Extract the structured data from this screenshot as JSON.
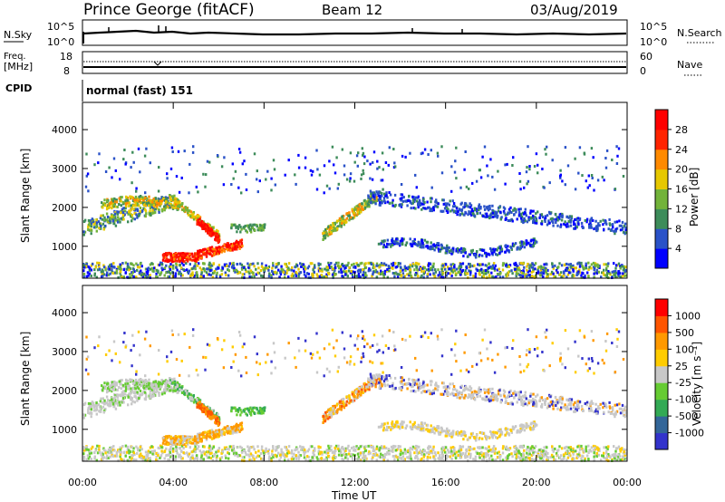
{
  "header": {
    "station": "Prince George (fitACF)",
    "beam": "Beam 12",
    "date": "03/Aug/2019"
  },
  "summary_panels": {
    "nsky_label": "N.Sky",
    "nsearch_label": "N.Search",
    "nsky_ticks": [
      "10^5",
      "10^0"
    ],
    "nsearch_ticks": [
      "10^5",
      "10^0"
    ],
    "freq_label_line1": "Freq.",
    "freq_label_line2": "[MHz]",
    "freq_ticks": [
      "18",
      "8"
    ],
    "nave_label": "Nave",
    "nave_ticks": [
      "60",
      "0"
    ],
    "cpid_label": "CPID",
    "cpid_value": "normal (fast) 151"
  },
  "colors": {
    "power_scale": [
      "#0000ff",
      "#2a52c8",
      "#3d8c5a",
      "#72b33a",
      "#e6c800",
      "#ff8a00",
      "#ff2400",
      "#ff0000"
    ],
    "velocity_scale": [
      "#3333cc",
      "#336699",
      "#33aa55",
      "#66cc33",
      "#c8c8c8",
      "#ffcc00",
      "#ff9900",
      "#ff5500",
      "#ff0000"
    ]
  },
  "chart_data": [
    {
      "type": "heatmap",
      "panel": "power",
      "ylabel": "Slant Range [km]",
      "xlabel": "Time UT",
      "x_ticks": [
        "00:00",
        "04:00",
        "08:00",
        "12:00",
        "16:00",
        "20:00",
        "00:00"
      ],
      "x_range_hours": [
        0,
        24
      ],
      "y_ticks": [
        1000,
        2000,
        3000,
        4000
      ],
      "ylim": [
        180,
        4700
      ],
      "colorbar_label": "Power [dB]",
      "colorbar_ticks": [
        4,
        8,
        12,
        16,
        20,
        24,
        28
      ],
      "colorbar_range": [
        0,
        30
      ],
      "features": [
        {
          "desc": "arc",
          "t_start": 0.0,
          "t_end": 7.0,
          "range_km": [
            1400,
            2200
          ]
        },
        {
          "desc": "strong echo",
          "t_start": 3.2,
          "t_end": 7.0,
          "range_km": [
            700,
            1500
          ],
          "power_db": 28
        },
        {
          "desc": "near-range ground scatter",
          "t_start": 0.0,
          "t_end": 24.0,
          "range_km": [
            180,
            700
          ]
        },
        {
          "desc": "afternoon arc",
          "t_start": 10.5,
          "t_end": 24.0,
          "range_km": [
            1000,
            2600
          ]
        }
      ]
    },
    {
      "type": "heatmap",
      "panel": "velocity",
      "ylabel": "Slant Range [km]",
      "xlabel": "Time UT",
      "x_ticks": [
        "00:00",
        "04:00",
        "08:00",
        "12:00",
        "16:00",
        "20:00",
        "00:00"
      ],
      "x_range_hours": [
        0,
        24
      ],
      "y_ticks": [
        1000,
        2000,
        3000,
        4000
      ],
      "ylim": [
        180,
        4700
      ],
      "colorbar_label": "Velocity [m s⁻¹]",
      "colorbar_ticks": [
        "1000",
        "500",
        "100",
        "25",
        "-25",
        "-100",
        "-500",
        "-1000"
      ]
    }
  ]
}
